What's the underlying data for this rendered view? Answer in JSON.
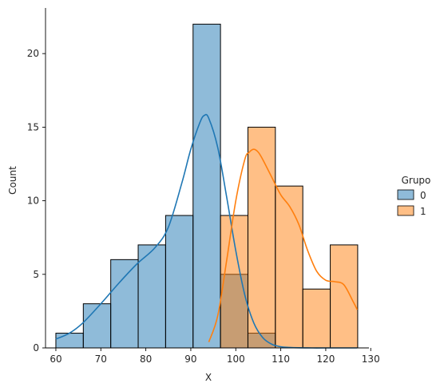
{
  "chart_data": {
    "type": "histogram",
    "title": "",
    "xlabel": "X",
    "ylabel": "Count",
    "xlim": [
      57.7,
      129.6
    ],
    "ylim": [
      0,
      23.1
    ],
    "xticks": [
      60,
      70,
      80,
      90,
      100,
      110,
      120,
      130
    ],
    "yticks": [
      0,
      5,
      10,
      15,
      20
    ],
    "bin_edges": [
      60.0,
      66.1,
      72.2,
      78.3,
      84.4,
      90.5,
      96.6,
      102.7,
      108.8,
      114.9,
      121.0,
      127.1
    ],
    "legend": {
      "title": "Grupo",
      "placement": "center-right"
    },
    "series": [
      {
        "name": "0",
        "color": "#1f77b4",
        "counts": [
          1,
          3,
          6,
          7,
          9,
          22,
          5,
          1,
          0,
          0,
          0
        ],
        "kde": {
          "x": [
            60,
            63,
            66,
            70,
            74,
            78,
            82,
            85,
            88,
            90,
            92,
            93,
            94,
            96,
            98,
            100,
            102,
            104,
            106,
            108,
            110,
            112,
            114,
            117,
            120,
            124,
            127
          ],
          "y": [
            0.6,
            1.0,
            1.7,
            3.0,
            4.4,
            5.7,
            6.8,
            8.2,
            11.2,
            13.5,
            15.3,
            15.8,
            15.6,
            13.6,
            10.2,
            6.6,
            3.6,
            1.7,
            0.7,
            0.25,
            0.08,
            0.03,
            0.01,
            0,
            0,
            0,
            0
          ]
        }
      },
      {
        "name": "1",
        "color": "#ff7f0e",
        "counts": [
          0,
          0,
          0,
          0,
          0,
          0,
          9,
          15,
          11,
          4,
          7
        ],
        "kde": {
          "x": [
            94,
            96,
            98,
            100,
            102,
            103,
            104,
            105,
            106,
            108,
            110,
            112,
            114,
            116,
            118,
            120,
            122,
            124,
            126,
            127
          ],
          "y": [
            0.4,
            2.2,
            6.0,
            10.0,
            12.8,
            13.3,
            13.5,
            13.3,
            12.8,
            11.6,
            10.4,
            9.6,
            8.4,
            6.6,
            5.2,
            4.6,
            4.5,
            4.3,
            3.2,
            2.6
          ]
        }
      }
    ]
  }
}
